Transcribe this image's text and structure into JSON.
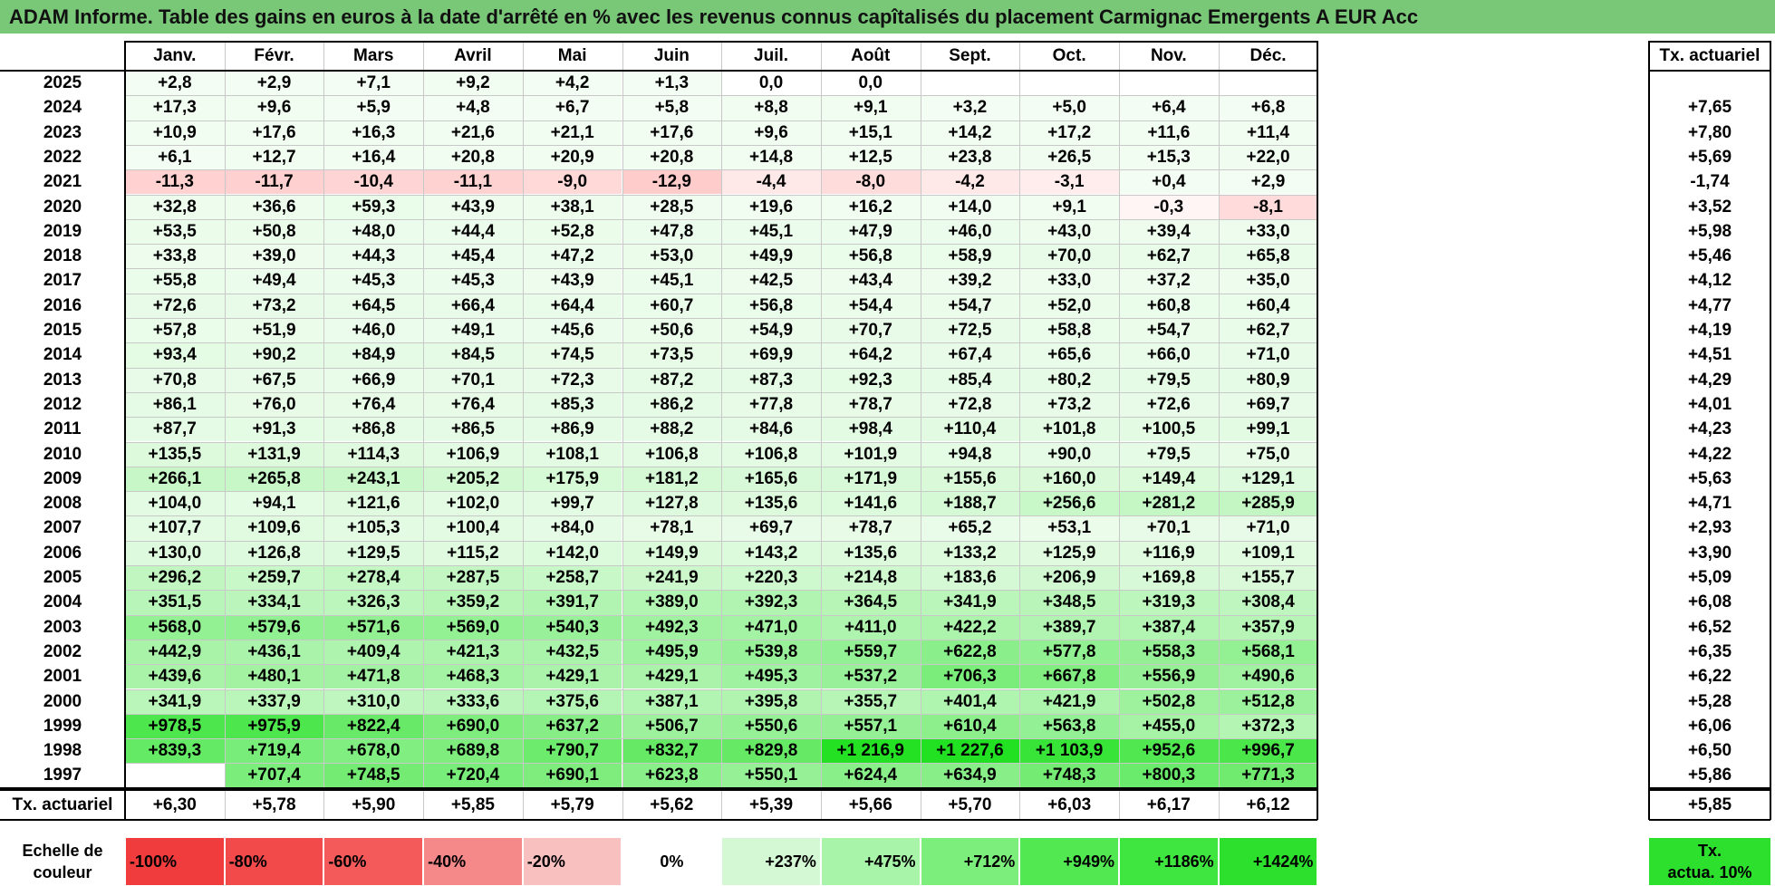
{
  "title": "ADAM Informe. Table des gains en euros à la date d'arrêté en % avec les revenus connus capîtalisés du placement Carmignac Emergents A EUR Acc",
  "months": [
    "Janv.",
    "Févr.",
    "Mars",
    "Avril",
    "Mai",
    "Juin",
    "Juil.",
    "Août",
    "Sept.",
    "Oct.",
    "Nov.",
    "Déc."
  ],
  "rate_header": "Tx. actuariel",
  "rows": [
    {
      "year": "2025",
      "values": [
        "+2,8",
        "+2,9",
        "+7,1",
        "+9,2",
        "+4,2",
        "+1,3",
        "0,0",
        "0,0",
        "",
        "",
        "",
        ""
      ],
      "rate": ""
    },
    {
      "year": "2024",
      "values": [
        "+17,3",
        "+9,6",
        "+5,9",
        "+4,8",
        "+6,7",
        "+5,8",
        "+8,8",
        "+9,1",
        "+3,2",
        "+5,0",
        "+6,4",
        "+6,8"
      ],
      "rate": "+7,65"
    },
    {
      "year": "2023",
      "values": [
        "+10,9",
        "+17,6",
        "+16,3",
        "+21,6",
        "+21,1",
        "+17,6",
        "+9,6",
        "+15,1",
        "+14,2",
        "+17,2",
        "+11,6",
        "+11,4"
      ],
      "rate": "+7,80"
    },
    {
      "year": "2022",
      "values": [
        "+6,1",
        "+12,7",
        "+16,4",
        "+20,8",
        "+20,9",
        "+20,8",
        "+14,8",
        "+12,5",
        "+23,8",
        "+26,5",
        "+15,3",
        "+22,0"
      ],
      "rate": "+5,69"
    },
    {
      "year": "2021",
      "values": [
        "-11,3",
        "-11,7",
        "-10,4",
        "-11,1",
        "-9,0",
        "-12,9",
        "-4,4",
        "-8,0",
        "-4,2",
        "-3,1",
        "+0,4",
        "+2,9"
      ],
      "rate": "-1,74"
    },
    {
      "year": "2020",
      "values": [
        "+32,8",
        "+36,6",
        "+59,3",
        "+43,9",
        "+38,1",
        "+28,5",
        "+19,6",
        "+16,2",
        "+14,0",
        "+9,1",
        "-0,3",
        "-8,1"
      ],
      "rate": "+3,52"
    },
    {
      "year": "2019",
      "values": [
        "+53,5",
        "+50,8",
        "+48,0",
        "+44,4",
        "+52,8",
        "+47,8",
        "+45,1",
        "+47,9",
        "+46,0",
        "+43,0",
        "+39,4",
        "+33,0"
      ],
      "rate": "+5,98"
    },
    {
      "year": "2018",
      "values": [
        "+33,8",
        "+39,0",
        "+44,3",
        "+45,4",
        "+47,2",
        "+53,0",
        "+49,9",
        "+56,8",
        "+58,9",
        "+70,0",
        "+62,7",
        "+65,8"
      ],
      "rate": "+5,46"
    },
    {
      "year": "2017",
      "values": [
        "+55,8",
        "+49,4",
        "+45,3",
        "+45,3",
        "+43,9",
        "+45,1",
        "+42,5",
        "+43,4",
        "+39,2",
        "+33,0",
        "+37,2",
        "+35,0"
      ],
      "rate": "+4,12"
    },
    {
      "year": "2016",
      "values": [
        "+72,6",
        "+73,2",
        "+64,5",
        "+66,4",
        "+64,4",
        "+60,7",
        "+56,8",
        "+54,4",
        "+54,7",
        "+52,0",
        "+60,8",
        "+60,4"
      ],
      "rate": "+4,77"
    },
    {
      "year": "2015",
      "values": [
        "+57,8",
        "+51,9",
        "+46,0",
        "+49,1",
        "+45,6",
        "+50,6",
        "+54,9",
        "+70,7",
        "+72,5",
        "+58,8",
        "+54,7",
        "+62,7"
      ],
      "rate": "+4,19"
    },
    {
      "year": "2014",
      "values": [
        "+93,4",
        "+90,2",
        "+84,9",
        "+84,5",
        "+74,5",
        "+73,5",
        "+69,9",
        "+64,2",
        "+67,4",
        "+65,6",
        "+66,0",
        "+71,0"
      ],
      "rate": "+4,51"
    },
    {
      "year": "2013",
      "values": [
        "+70,8",
        "+67,5",
        "+66,9",
        "+70,1",
        "+72,3",
        "+87,2",
        "+87,3",
        "+92,3",
        "+85,4",
        "+80,2",
        "+79,5",
        "+80,9"
      ],
      "rate": "+4,29"
    },
    {
      "year": "2012",
      "values": [
        "+86,1",
        "+76,0",
        "+76,4",
        "+76,4",
        "+85,3",
        "+86,2",
        "+77,8",
        "+78,7",
        "+72,8",
        "+73,2",
        "+72,6",
        "+69,7"
      ],
      "rate": "+4,01"
    },
    {
      "year": "2011",
      "values": [
        "+87,7",
        "+91,3",
        "+86,8",
        "+86,5",
        "+86,9",
        "+88,2",
        "+84,6",
        "+98,4",
        "+110,4",
        "+101,8",
        "+100,5",
        "+99,1"
      ],
      "rate": "+4,23"
    },
    {
      "year": "2010",
      "values": [
        "+135,5",
        "+131,9",
        "+114,3",
        "+106,9",
        "+108,1",
        "+106,8",
        "+106,8",
        "+101,9",
        "+94,8",
        "+90,0",
        "+79,5",
        "+75,0"
      ],
      "rate": "+4,22"
    },
    {
      "year": "2009",
      "values": [
        "+266,1",
        "+265,8",
        "+243,1",
        "+205,2",
        "+175,9",
        "+181,2",
        "+165,6",
        "+171,9",
        "+155,6",
        "+160,0",
        "+149,4",
        "+129,1"
      ],
      "rate": "+5,63"
    },
    {
      "year": "2008",
      "values": [
        "+104,0",
        "+94,1",
        "+121,6",
        "+102,0",
        "+99,7",
        "+127,8",
        "+135,6",
        "+141,6",
        "+188,7",
        "+256,6",
        "+281,2",
        "+285,9"
      ],
      "rate": "+4,71"
    },
    {
      "year": "2007",
      "values": [
        "+107,7",
        "+109,6",
        "+105,3",
        "+100,4",
        "+84,0",
        "+78,1",
        "+69,7",
        "+78,7",
        "+65,2",
        "+53,1",
        "+70,1",
        "+71,0"
      ],
      "rate": "+2,93"
    },
    {
      "year": "2006",
      "values": [
        "+130,0",
        "+126,8",
        "+129,5",
        "+115,2",
        "+142,0",
        "+149,9",
        "+143,2",
        "+135,6",
        "+133,2",
        "+125,9",
        "+116,9",
        "+109,1"
      ],
      "rate": "+3,90"
    },
    {
      "year": "2005",
      "values": [
        "+296,2",
        "+259,7",
        "+278,4",
        "+287,5",
        "+258,7",
        "+241,9",
        "+220,3",
        "+214,8",
        "+183,6",
        "+206,9",
        "+169,8",
        "+155,7"
      ],
      "rate": "+5,09"
    },
    {
      "year": "2004",
      "values": [
        "+351,5",
        "+334,1",
        "+326,3",
        "+359,2",
        "+391,7",
        "+389,0",
        "+392,3",
        "+364,5",
        "+341,9",
        "+348,5",
        "+319,3",
        "+308,4"
      ],
      "rate": "+6,08"
    },
    {
      "year": "2003",
      "values": [
        "+568,0",
        "+579,6",
        "+571,6",
        "+569,0",
        "+540,3",
        "+492,3",
        "+471,0",
        "+411,0",
        "+422,2",
        "+389,7",
        "+387,4",
        "+357,9"
      ],
      "rate": "+6,52"
    },
    {
      "year": "2002",
      "values": [
        "+442,9",
        "+436,1",
        "+409,4",
        "+421,3",
        "+432,5",
        "+495,9",
        "+539,8",
        "+559,7",
        "+622,8",
        "+577,8",
        "+558,3",
        "+568,1"
      ],
      "rate": "+6,35"
    },
    {
      "year": "2001",
      "values": [
        "+439,6",
        "+480,1",
        "+471,8",
        "+468,3",
        "+429,1",
        "+429,1",
        "+495,3",
        "+537,2",
        "+706,3",
        "+667,8",
        "+556,9",
        "+490,6"
      ],
      "rate": "+6,22"
    },
    {
      "year": "2000",
      "values": [
        "+341,9",
        "+337,9",
        "+310,0",
        "+333,6",
        "+375,6",
        "+387,1",
        "+395,8",
        "+355,7",
        "+401,4",
        "+421,9",
        "+502,8",
        "+512,8"
      ],
      "rate": "+5,28"
    },
    {
      "year": "1999",
      "values": [
        "+978,5",
        "+975,9",
        "+822,4",
        "+690,0",
        "+637,2",
        "+506,7",
        "+550,6",
        "+557,1",
        "+610,4",
        "+563,8",
        "+455,0",
        "+372,3"
      ],
      "rate": "+6,06"
    },
    {
      "year": "1998",
      "values": [
        "+839,3",
        "+719,4",
        "+678,0",
        "+689,8",
        "+790,7",
        "+832,7",
        "+829,8",
        "+1 216,9",
        "+1 227,6",
        "+1 103,9",
        "+952,6",
        "+996,7"
      ],
      "rate": "+6,50"
    },
    {
      "year": "1997",
      "values": [
        "",
        "+707,4",
        "+748,5",
        "+720,4",
        "+690,1",
        "+623,8",
        "+550,1",
        "+624,4",
        "+634,9",
        "+748,3",
        "+800,3",
        "+771,3"
      ],
      "rate": "+5,86"
    }
  ],
  "footer": {
    "label": "Tx. actuariel",
    "values": [
      "+6,30",
      "+5,78",
      "+5,90",
      "+5,85",
      "+5,79",
      "+5,62",
      "+5,39",
      "+5,66",
      "+5,70",
      "+6,03",
      "+6,17",
      "+6,12"
    ],
    "rate": "+5,85"
  },
  "legend": {
    "label_line1": "Echelle de",
    "label_line2": "couleur",
    "items": [
      {
        "text": "-100%",
        "color": "#f03c3c",
        "align": "left"
      },
      {
        "text": "-80%",
        "color": "#f24a4a",
        "align": "left"
      },
      {
        "text": "-60%",
        "color": "#f45a5a",
        "align": "left"
      },
      {
        "text": "-40%",
        "color": "#f58888",
        "align": "left"
      },
      {
        "text": "-20%",
        "color": "#f9c0c0",
        "align": "left"
      },
      {
        "text": "0%",
        "color": "#ffffff",
        "align": "center"
      },
      {
        "text": "+237%",
        "color": "#d4f8d4",
        "align": "right"
      },
      {
        "text": "+475%",
        "color": "#a8f4a8",
        "align": "right"
      },
      {
        "text": "+712%",
        "color": "#7cee7c",
        "align": "right"
      },
      {
        "text": "+949%",
        "color": "#52e852",
        "align": "right"
      },
      {
        "text": "+1186%",
        "color": "#40e640",
        "align": "right"
      },
      {
        "text": "+1424%",
        "color": "#2ee02e",
        "align": "right"
      }
    ],
    "rate_line1": "Tx.",
    "rate_line2": "actua. 10%",
    "rate_color": "#2ee02e"
  }
}
